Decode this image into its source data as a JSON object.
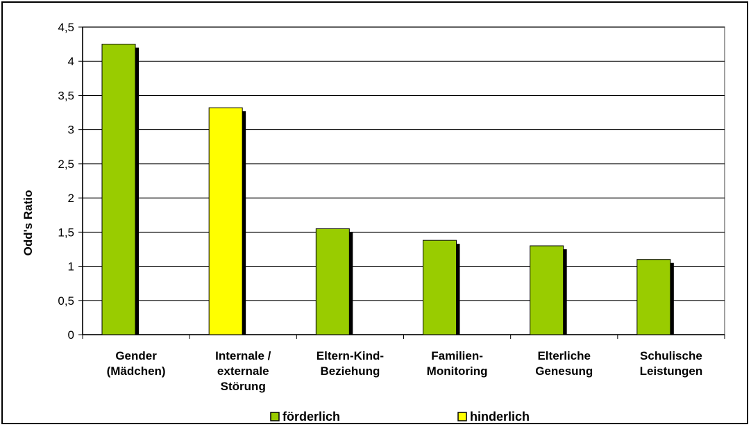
{
  "chart_data": {
    "type": "bar",
    "categories": [
      [
        "Gender",
        "(Mädchen)"
      ],
      [
        "Internale /",
        "externale",
        "Störung"
      ],
      [
        "Eltern-Kind-",
        "Beziehung"
      ],
      [
        "Familien-",
        "Monitoring"
      ],
      [
        "Elterliche",
        "Genesung"
      ],
      [
        "Schulische",
        "Leistungen"
      ]
    ],
    "series": [
      {
        "name": "förderlich",
        "color": "#99CC00",
        "values": [
          4.25,
          null,
          1.55,
          1.38,
          1.3,
          1.1
        ]
      },
      {
        "name": "hinderlich",
        "color": "#FFFF00",
        "values": [
          null,
          3.32,
          null,
          null,
          null,
          null
        ]
      }
    ],
    "ylabel": "Odd's Ratio",
    "ylim": [
      0,
      4.5
    ],
    "yticks": [
      "0",
      "0,5",
      "1",
      "1,5",
      "2",
      "2,5",
      "3",
      "3,5",
      "4",
      "4,5"
    ],
    "ytick_values": [
      0,
      0.5,
      1,
      1.5,
      2,
      2.5,
      3,
      3.5,
      4,
      4.5
    ],
    "grid": true,
    "legend_position": "bottom"
  }
}
